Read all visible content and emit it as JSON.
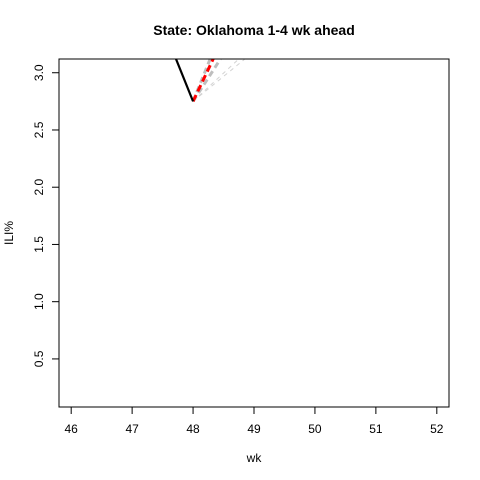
{
  "chart_data": {
    "type": "line",
    "title": "State: Oklahoma 1-4 wk ahead",
    "xlabel": "wk",
    "ylabel": "ILI%",
    "xlim": [
      45.8,
      52.2
    ],
    "ylim": [
      0.08,
      3.12
    ],
    "x_ticks": [
      46,
      47,
      48,
      49,
      50,
      51,
      52
    ],
    "y_ticks": [
      0.5,
      1.0,
      1.5,
      2.0,
      2.5,
      3.0
    ],
    "x_tick_labels": [
      "46",
      "47",
      "48",
      "49",
      "50",
      "51",
      "52"
    ],
    "y_tick_labels": [
      "0.5",
      "1.0",
      "1.5",
      "2.0",
      "2.5",
      "3.0"
    ],
    "grid": false,
    "series": [
      {
        "role": "observed",
        "color": "#000000",
        "style": "solid",
        "points": [
          [
            47.72,
            3.12
          ],
          [
            48.0,
            2.75
          ]
        ]
      },
      {
        "role": "forecast",
        "color": "#ff0000",
        "style": "dashed",
        "points": [
          [
            48.0,
            2.75
          ],
          [
            48.33,
            3.12
          ]
        ]
      },
      {
        "role": "forecast-bound",
        "color": "#bebebe",
        "style": "dashed-thick",
        "points": [
          [
            48.0,
            2.75
          ],
          [
            48.28,
            3.12
          ]
        ]
      },
      {
        "role": "forecast-bound",
        "color": "#bebebe",
        "style": "dashed-thick",
        "points": [
          [
            48.0,
            2.75
          ],
          [
            48.45,
            3.12
          ]
        ]
      },
      {
        "role": "forecast-bound",
        "color": "#d3d3d3",
        "style": "dashed",
        "points": [
          [
            48.0,
            2.75
          ],
          [
            48.75,
            3.12
          ]
        ]
      },
      {
        "role": "forecast-bound",
        "color": "#d3d3d3",
        "style": "dashed",
        "points": [
          [
            48.0,
            2.75
          ],
          [
            48.85,
            3.12
          ]
        ]
      }
    ]
  }
}
